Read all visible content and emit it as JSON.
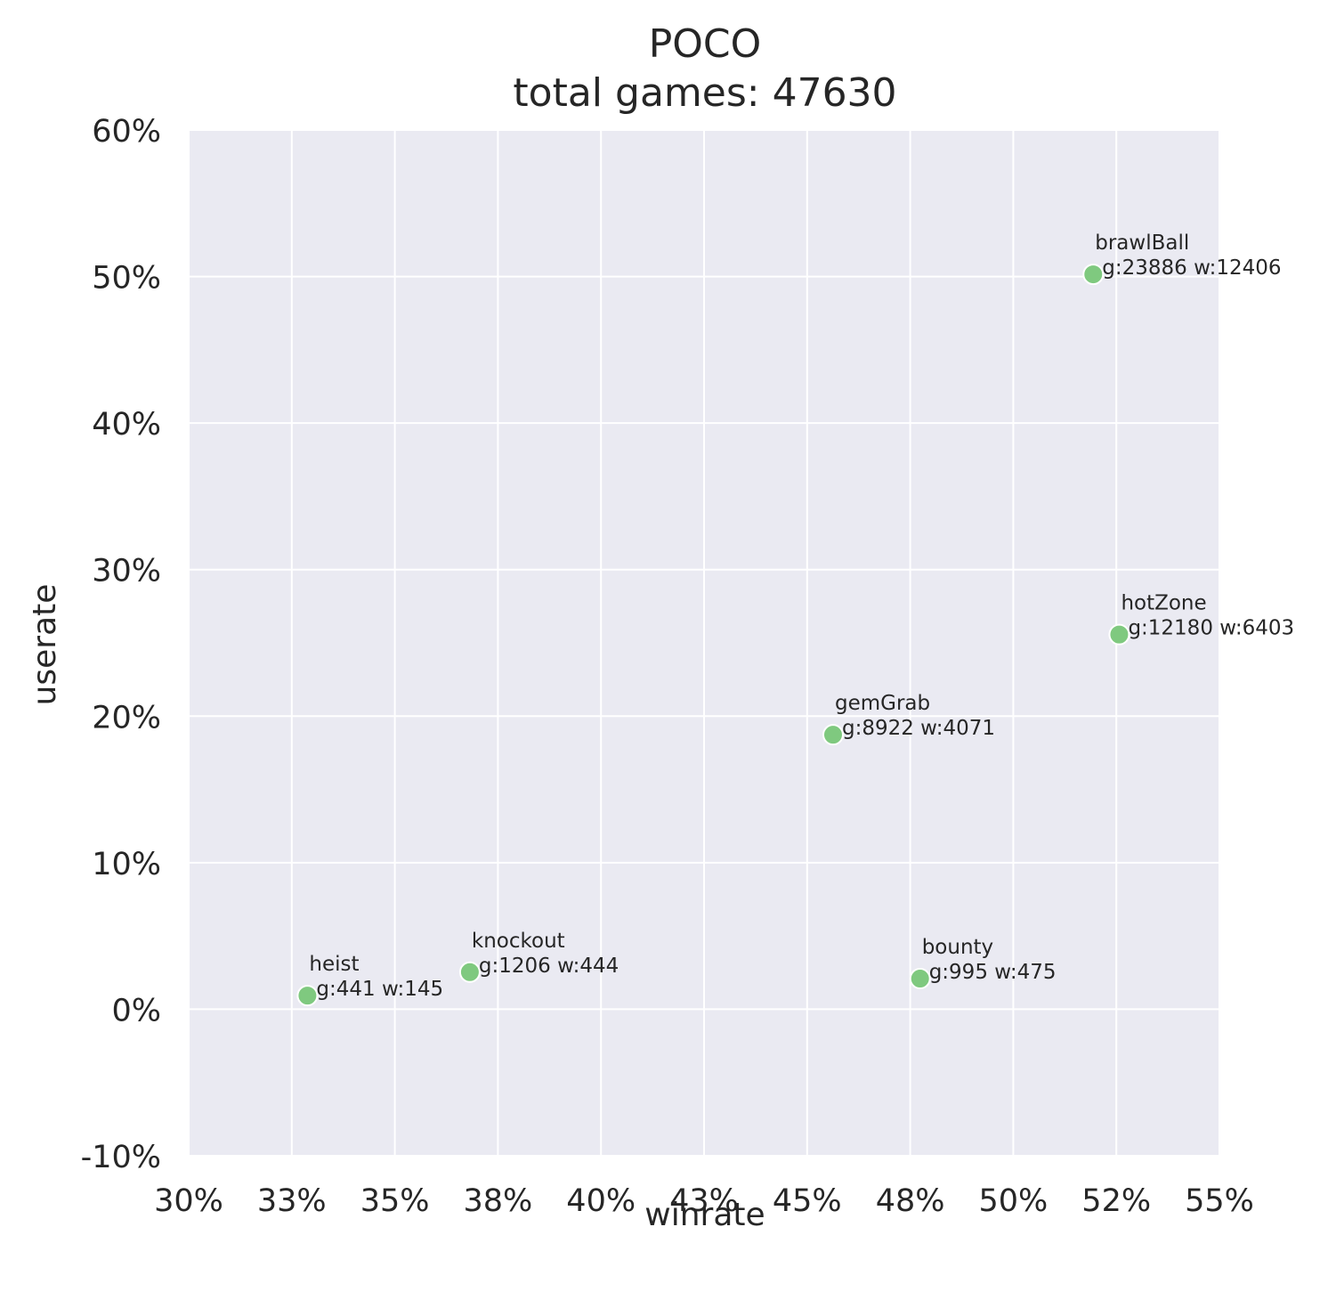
{
  "chart_data": {
    "type": "scatter",
    "title": "POCO",
    "subtitle": "total games: 47630",
    "xlabel": "winrate",
    "ylabel": "userate",
    "xlim": [
      0.3,
      0.55
    ],
    "ylim": [
      -0.1,
      0.6
    ],
    "x_ticks": [
      0.3,
      0.325,
      0.35,
      0.375,
      0.4,
      0.425,
      0.45,
      0.475,
      0.5,
      0.525,
      0.55
    ],
    "x_tick_labels": [
      "30%",
      "33%",
      "35%",
      "38%",
      "40%",
      "43%",
      "45%",
      "48%",
      "50%",
      "52%",
      "55%"
    ],
    "y_ticks": [
      -0.1,
      0.0,
      0.1,
      0.2,
      0.3,
      0.4,
      0.5,
      0.6
    ],
    "y_tick_labels": [
      "-10%",
      "0%",
      "10%",
      "20%",
      "30%",
      "40%",
      "50%",
      "60%"
    ],
    "grid": true,
    "point_color": "#7fc97f",
    "points": [
      {
        "name": "brawlBall",
        "stats": "g:23886 w:12406",
        "x": 0.5194,
        "y": 0.5015
      },
      {
        "name": "hotZone",
        "stats": "g:12180 w:6403",
        "x": 0.5257,
        "y": 0.2557
      },
      {
        "name": "gemGrab",
        "stats": "g:8922 w:4071",
        "x": 0.4563,
        "y": 0.1873
      },
      {
        "name": "knockout",
        "stats": "g:1206 w:444",
        "x": 0.3682,
        "y": 0.0253
      },
      {
        "name": "bounty",
        "stats": "g:995 w:475",
        "x": 0.4774,
        "y": 0.0209
      },
      {
        "name": "heist",
        "stats": "g:441 w:145",
        "x": 0.3288,
        "y": 0.0093
      }
    ]
  }
}
